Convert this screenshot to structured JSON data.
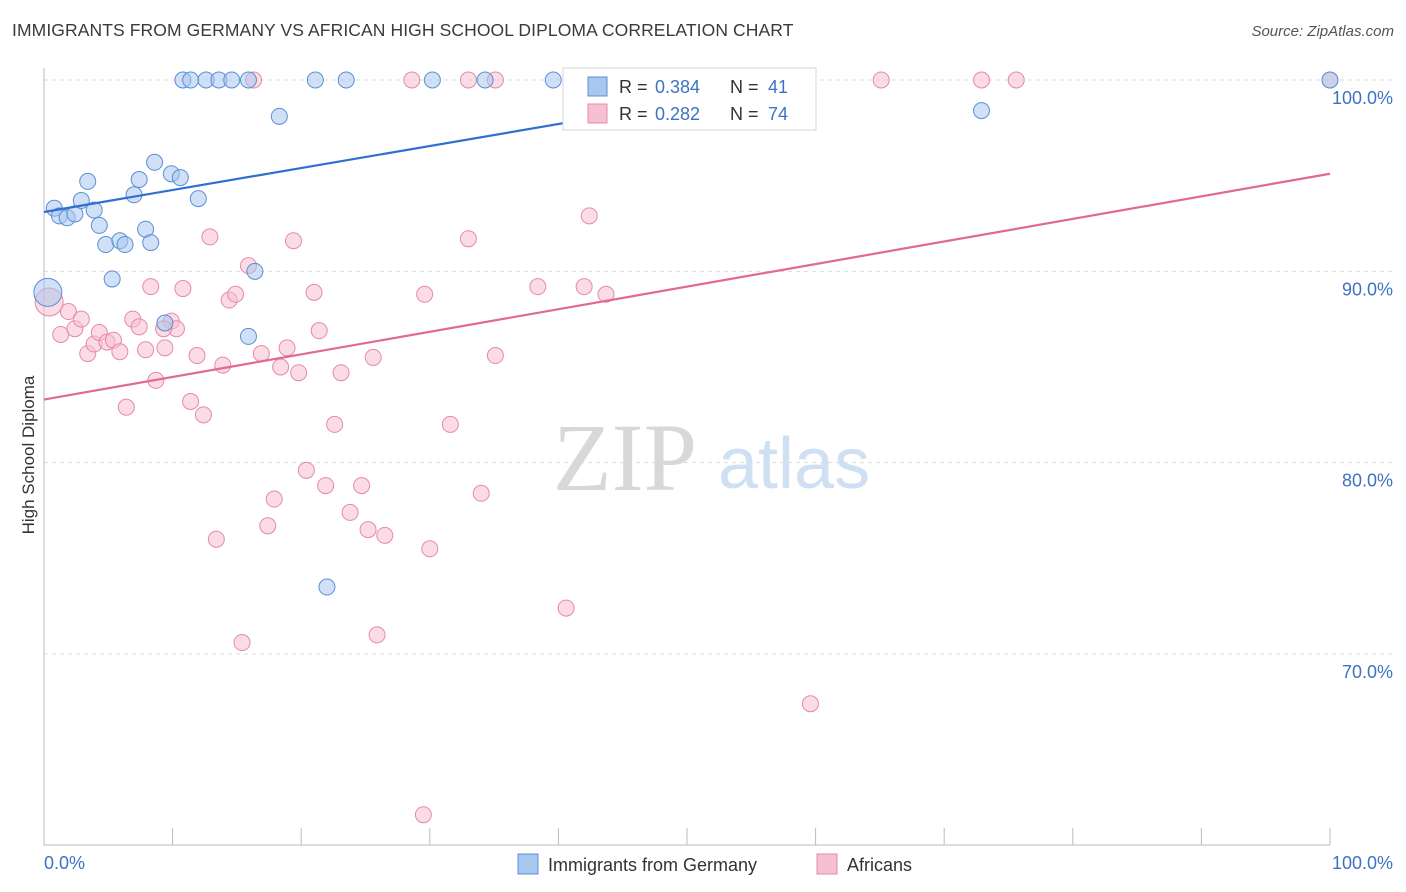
{
  "header": {
    "title": "IMMIGRANTS FROM GERMANY VS AFRICAN HIGH SCHOOL DIPLOMA CORRELATION CHART",
    "source": "Source: ZipAtlas.com"
  },
  "legend_box": {
    "rows": [
      {
        "r_label": "R =",
        "r_value": "0.384",
        "n_label": "N =",
        "n_value": "41"
      },
      {
        "r_label": "R =",
        "r_value": "0.282",
        "n_label": "N =",
        "n_value": "74"
      }
    ]
  },
  "bottom_legend": [
    "Immigrants from Germany",
    "Africans"
  ],
  "watermark": {
    "zip": "ZIP",
    "atlas": "atlas"
  },
  "colors": {
    "germany_fill": "#a9c7ee",
    "germany_stroke": "#5a8fd6",
    "germany_line": "#2f6fcf",
    "africans_fill": "#f7c0d0",
    "africans_stroke": "#e58aa8",
    "africans_line": "#e06a93",
    "grid": "#dddddd",
    "tick_label": "#3d72c4"
  },
  "chart_data": {
    "type": "scatter",
    "title": "IMMIGRANTS FROM GERMANY VS AFRICAN HIGH SCHOOL DIPLOMA CORRELATION CHART",
    "xlabel": "",
    "ylabel": "High School Diploma",
    "xlim": [
      0,
      100
    ],
    "ylim": [
      60,
      100
    ],
    "x_tick_labels": [
      "0.0%",
      "100.0%"
    ],
    "y_tick_labels": [
      "100.0%",
      "90.0%",
      "80.0%",
      "70.0%"
    ],
    "y_ticks": [
      100,
      90,
      80,
      70
    ],
    "grid": true,
    "legend_placement": "bottom",
    "series": [
      {
        "name": "Immigrants from Germany",
        "R": 0.384,
        "N": 41,
        "trend": {
          "x": [
            0,
            100
          ],
          "y": [
            93.1,
            104.6
          ]
        },
        "points": [
          {
            "x": 0.3,
            "y": 88.9,
            "big": true
          },
          {
            "x": 0.8,
            "y": 93.3
          },
          {
            "x": 1.2,
            "y": 92.9
          },
          {
            "x": 1.8,
            "y": 92.8
          },
          {
            "x": 2.4,
            "y": 93.0
          },
          {
            "x": 2.9,
            "y": 93.7
          },
          {
            "x": 3.4,
            "y": 94.7
          },
          {
            "x": 3.9,
            "y": 93.2
          },
          {
            "x": 4.3,
            "y": 92.4
          },
          {
            "x": 4.8,
            "y": 91.4
          },
          {
            "x": 5.3,
            "y": 89.6
          },
          {
            "x": 5.9,
            "y": 91.6
          },
          {
            "x": 6.3,
            "y": 91.4
          },
          {
            "x": 7.0,
            "y": 94.0
          },
          {
            "x": 7.4,
            "y": 94.8
          },
          {
            "x": 7.9,
            "y": 92.2
          },
          {
            "x": 8.3,
            "y": 91.5
          },
          {
            "x": 8.6,
            "y": 95.7
          },
          {
            "x": 9.4,
            "y": 87.3
          },
          {
            "x": 9.9,
            "y": 95.1
          },
          {
            "x": 10.6,
            "y": 94.9
          },
          {
            "x": 12.0,
            "y": 93.8
          },
          {
            "x": 16.4,
            "y": 90.0
          },
          {
            "x": 15.9,
            "y": 86.6
          },
          {
            "x": 18.3,
            "y": 98.1
          },
          {
            "x": 22.0,
            "y": 73.5
          },
          {
            "x": 10.8,
            "y": 100
          },
          {
            "x": 11.4,
            "y": 100
          },
          {
            "x": 12.6,
            "y": 100
          },
          {
            "x": 13.6,
            "y": 100
          },
          {
            "x": 14.6,
            "y": 100
          },
          {
            "x": 15.9,
            "y": 100
          },
          {
            "x": 21.1,
            "y": 100
          },
          {
            "x": 23.5,
            "y": 100
          },
          {
            "x": 30.2,
            "y": 100
          },
          {
            "x": 34.3,
            "y": 100
          },
          {
            "x": 39.6,
            "y": 100
          },
          {
            "x": 47.9,
            "y": 100
          },
          {
            "x": 72.9,
            "y": 98.4
          },
          {
            "x": 100.0,
            "y": 100
          },
          {
            "x": 55.0,
            "y": 100
          }
        ]
      },
      {
        "name": "Africans",
        "R": 0.282,
        "N": 74,
        "trend": {
          "x": [
            0,
            100
          ],
          "y": [
            83.3,
            95.1
          ]
        },
        "points": [
          {
            "x": 0.4,
            "y": 88.4,
            "big": true
          },
          {
            "x": 1.3,
            "y": 86.7
          },
          {
            "x": 1.9,
            "y": 87.9
          },
          {
            "x": 2.4,
            "y": 87.0
          },
          {
            "x": 2.9,
            "y": 87.5
          },
          {
            "x": 3.4,
            "y": 85.7
          },
          {
            "x": 3.9,
            "y": 86.2
          },
          {
            "x": 4.3,
            "y": 86.8
          },
          {
            "x": 4.9,
            "y": 86.3
          },
          {
            "x": 5.4,
            "y": 86.4
          },
          {
            "x": 5.9,
            "y": 85.8
          },
          {
            "x": 6.4,
            "y": 82.9
          },
          {
            "x": 6.9,
            "y": 87.5
          },
          {
            "x": 7.4,
            "y": 87.1
          },
          {
            "x": 7.9,
            "y": 85.9
          },
          {
            "x": 8.3,
            "y": 89.2
          },
          {
            "x": 8.7,
            "y": 84.3
          },
          {
            "x": 9.4,
            "y": 86.0
          },
          {
            "x": 9.9,
            "y": 87.4
          },
          {
            "x": 10.3,
            "y": 87.0
          },
          {
            "x": 10.8,
            "y": 89.1
          },
          {
            "x": 11.4,
            "y": 83.2
          },
          {
            "x": 11.9,
            "y": 85.6
          },
          {
            "x": 12.4,
            "y": 82.5
          },
          {
            "x": 12.9,
            "y": 91.8
          },
          {
            "x": 13.4,
            "y": 76.0
          },
          {
            "x": 13.9,
            "y": 85.1
          },
          {
            "x": 14.4,
            "y": 88.5
          },
          {
            "x": 14.9,
            "y": 88.8
          },
          {
            "x": 15.4,
            "y": 70.6
          },
          {
            "x": 15.9,
            "y": 90.3
          },
          {
            "x": 16.9,
            "y": 85.7
          },
          {
            "x": 17.4,
            "y": 76.7
          },
          {
            "x": 17.9,
            "y": 78.1
          },
          {
            "x": 18.4,
            "y": 85.0
          },
          {
            "x": 18.9,
            "y": 86.0
          },
          {
            "x": 19.4,
            "y": 91.6
          },
          {
            "x": 19.8,
            "y": 84.7
          },
          {
            "x": 20.4,
            "y": 79.6
          },
          {
            "x": 21.0,
            "y": 88.9
          },
          {
            "x": 21.4,
            "y": 86.9
          },
          {
            "x": 21.9,
            "y": 78.8
          },
          {
            "x": 22.6,
            "y": 82.0
          },
          {
            "x": 23.1,
            "y": 84.7
          },
          {
            "x": 23.8,
            "y": 77.4
          },
          {
            "x": 24.7,
            "y": 78.8
          },
          {
            "x": 25.2,
            "y": 76.5
          },
          {
            "x": 25.6,
            "y": 85.5
          },
          {
            "x": 25.9,
            "y": 71.0
          },
          {
            "x": 26.5,
            "y": 76.2
          },
          {
            "x": 29.5,
            "y": 61.6
          },
          {
            "x": 29.6,
            "y": 88.8
          },
          {
            "x": 30.0,
            "y": 75.5
          },
          {
            "x": 31.6,
            "y": 82.0
          },
          {
            "x": 33.0,
            "y": 91.7
          },
          {
            "x": 34.0,
            "y": 78.4
          },
          {
            "x": 35.1,
            "y": 85.6
          },
          {
            "x": 38.4,
            "y": 89.2
          },
          {
            "x": 40.6,
            "y": 72.4
          },
          {
            "x": 42.0,
            "y": 89.2
          },
          {
            "x": 42.4,
            "y": 92.9
          },
          {
            "x": 43.7,
            "y": 88.8
          },
          {
            "x": 59.6,
            "y": 67.4
          },
          {
            "x": 16.3,
            "y": 100
          },
          {
            "x": 28.6,
            "y": 100
          },
          {
            "x": 33.0,
            "y": 100
          },
          {
            "x": 35.1,
            "y": 100
          },
          {
            "x": 52.9,
            "y": 100
          },
          {
            "x": 58.3,
            "y": 99.3
          },
          {
            "x": 65.1,
            "y": 100
          },
          {
            "x": 72.9,
            "y": 100
          },
          {
            "x": 75.6,
            "y": 100
          },
          {
            "x": 100.0,
            "y": 100
          },
          {
            "x": 9.3,
            "y": 87.0
          }
        ]
      }
    ]
  }
}
